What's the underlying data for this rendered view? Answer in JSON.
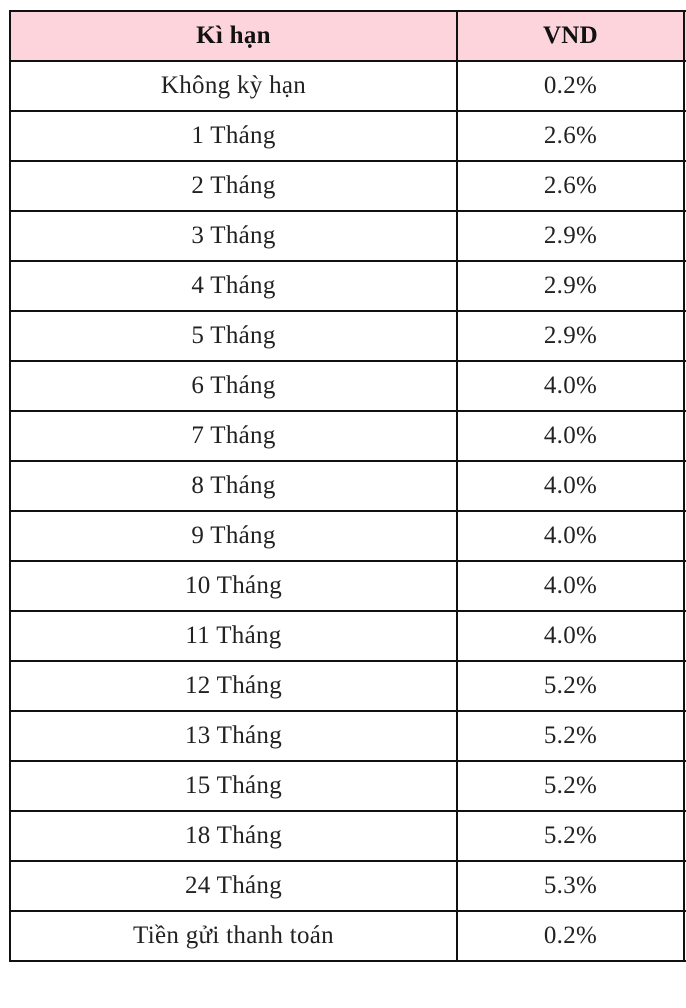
{
  "table": {
    "headers": [
      "Kì hạn",
      "VND"
    ],
    "header_bg": "#fdd4dc",
    "rows": [
      [
        "Không kỳ hạn",
        "0.2%"
      ],
      [
        "1 Tháng",
        "2.6%"
      ],
      [
        "2 Tháng",
        "2.6%"
      ],
      [
        "3 Tháng",
        "2.9%"
      ],
      [
        "4 Tháng",
        "2.9%"
      ],
      [
        "5 Tháng",
        "2.9%"
      ],
      [
        "6 Tháng",
        "4.0%"
      ],
      [
        "7 Tháng",
        "4.0%"
      ],
      [
        "8 Tháng",
        "4.0%"
      ],
      [
        "9 Tháng",
        "4.0%"
      ],
      [
        "10 Tháng",
        "4.0%"
      ],
      [
        "11 Tháng",
        "4.0%"
      ],
      [
        "12 Tháng",
        "5.2%"
      ],
      [
        "13 Tháng",
        "5.2%"
      ],
      [
        "15 Tháng",
        "5.2%"
      ],
      [
        "18 Tháng",
        "5.2%"
      ],
      [
        "24 Tháng",
        "5.3%"
      ],
      [
        "Tiền gửi thanh toán",
        "0.2%"
      ]
    ]
  }
}
